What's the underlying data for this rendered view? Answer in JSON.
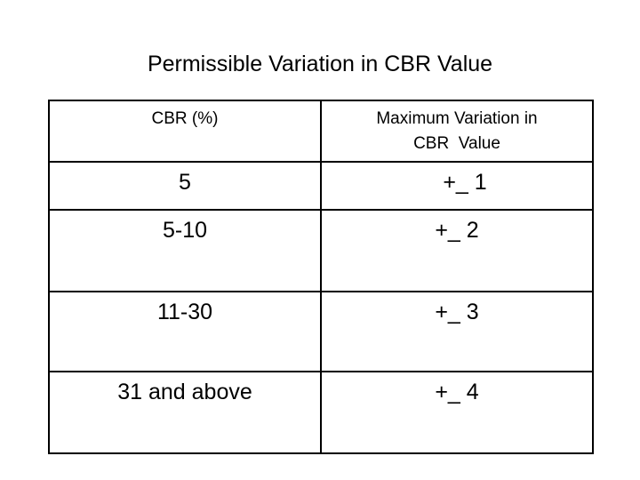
{
  "title": "Permissible Variation in CBR Value",
  "table": {
    "header": [
      "CBR (%)",
      "Maximum Variation in\nCBR  Value"
    ],
    "rows": [
      [
        "5",
        "+_ 1"
      ],
      [
        "5-10",
        "+_ 2"
      ],
      [
        "11-30",
        "+_ 3"
      ],
      [
        "31 and above",
        "+_ 4"
      ]
    ]
  }
}
